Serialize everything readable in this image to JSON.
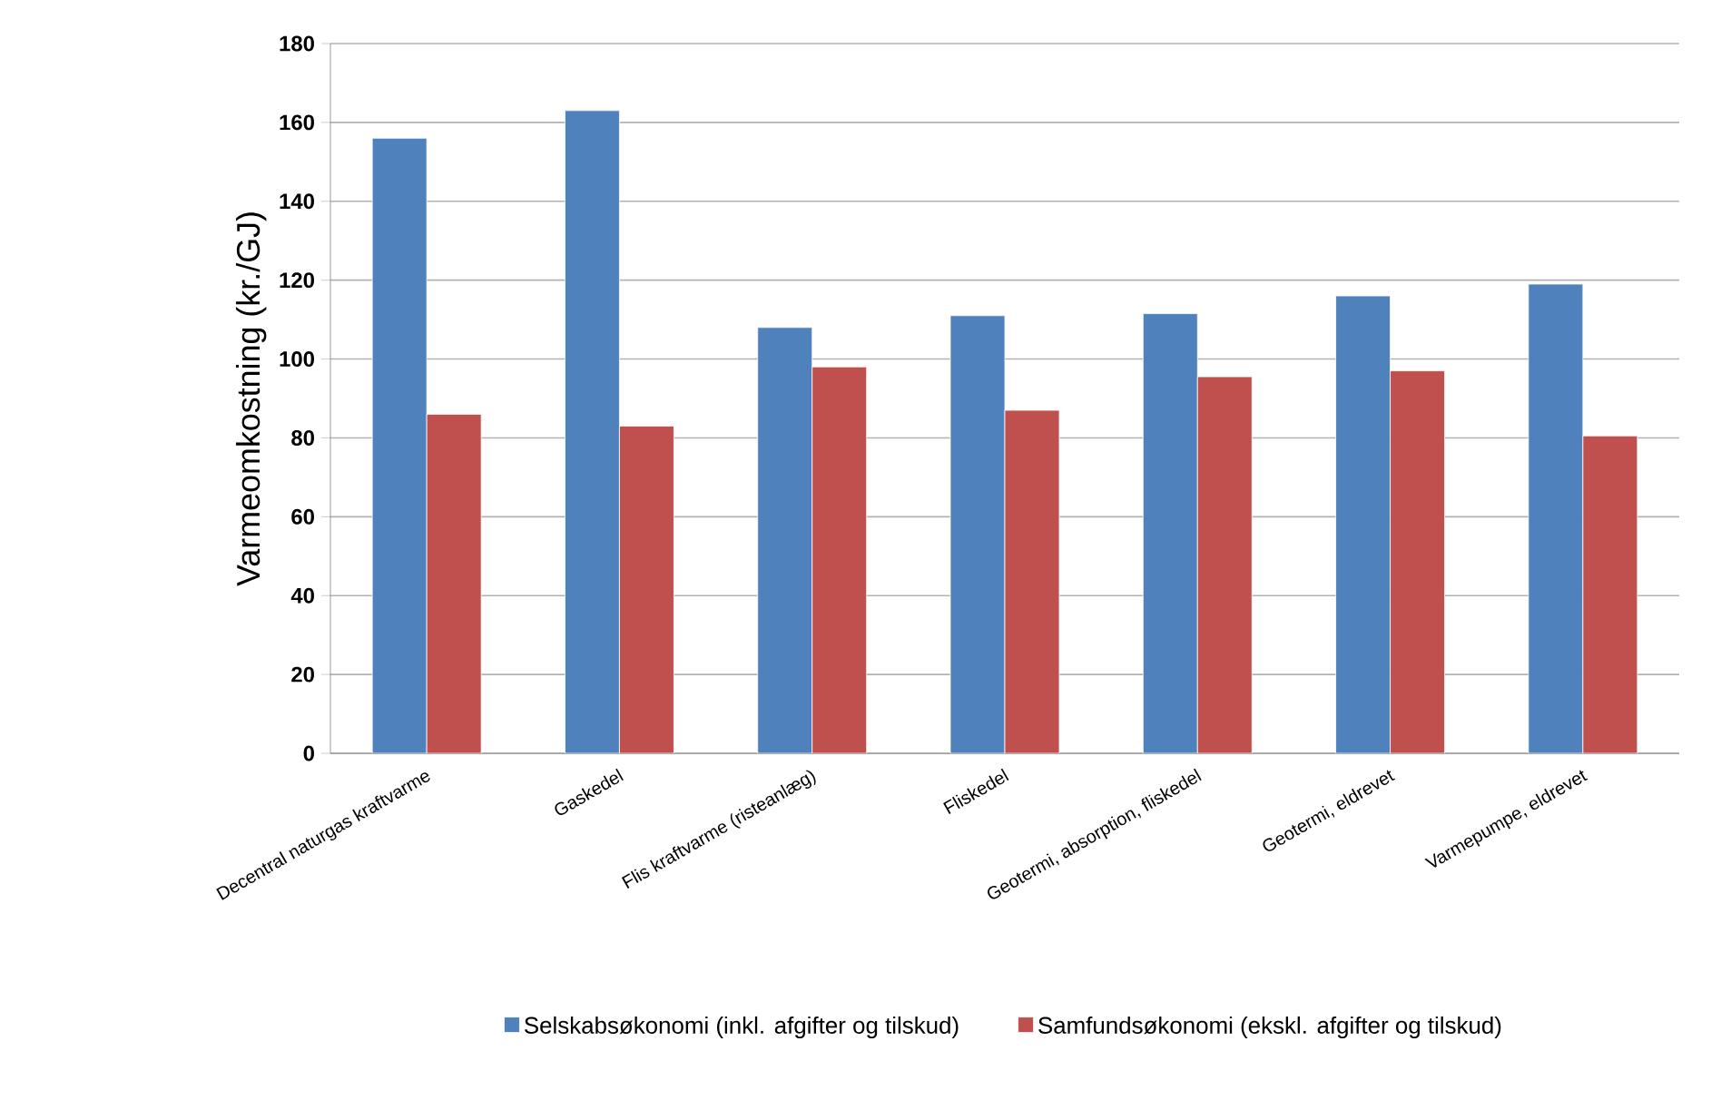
{
  "chart_data": {
    "type": "bar",
    "ylabel": "Varmeomkostning (kr./GJ)",
    "categories": [
      "Decentral naturgas kraftvarme",
      "Gaskedel",
      "Flis kraftvarme (risteanlæg)",
      "Fliskedel",
      "Geotermi, absorption, fliskedel",
      "Geotermi, eldrevet",
      "Varmepumpe, eldrevet"
    ],
    "series": [
      {
        "name": "Selskabsøkonomi (inkl. afgifter og tilskud)",
        "color": "#4f81bd",
        "values": [
          156,
          163,
          108,
          111,
          111.5,
          116,
          119
        ]
      },
      {
        "name": "Samfundsøkonomi (ekskl. afgifter og tilskud)",
        "color": "#c0504d",
        "values": [
          86,
          83,
          98,
          87,
          95.5,
          97,
          80.5
        ]
      }
    ],
    "ylim": [
      0,
      180
    ],
    "yticks": [
      0,
      20,
      40,
      60,
      80,
      100,
      120,
      140,
      160,
      180
    ],
    "grid": "y",
    "legend": "bottom"
  }
}
